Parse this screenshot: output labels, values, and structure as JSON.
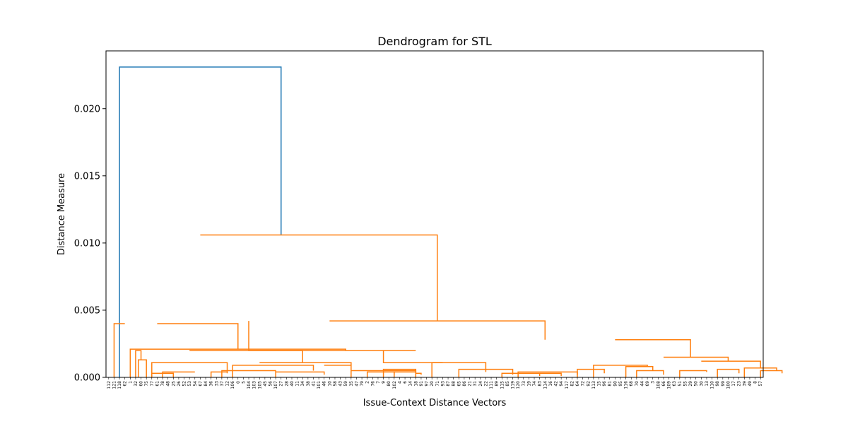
{
  "chart_data": {
    "type": "dendrogram",
    "title": "Dendrogram for STL",
    "xlabel": "Issue-Context Distance Vectors",
    "ylabel": "Distance Measure",
    "ylim": [
      0,
      0.0243
    ],
    "yticks": [
      0.0,
      0.005,
      0.01,
      0.015,
      0.02
    ],
    "ytick_labels": [
      "0.000",
      "0.005",
      "0.010",
      "0.015",
      "0.020"
    ],
    "grid": false,
    "colors": {
      "above_threshold": "#1f77b4",
      "cluster": "#ff7f0e"
    },
    "leaves": [
      "112",
      "121",
      "118",
      "62",
      "1",
      "32",
      "60",
      "75",
      "77",
      "61",
      "78",
      "48",
      "25",
      "26",
      "52",
      "53",
      "54",
      "67",
      "84",
      "36",
      "33",
      "37",
      "12",
      "106",
      "0",
      "5",
      "104",
      "103",
      "105",
      "45",
      "56",
      "107",
      "27",
      "28",
      "40",
      "11",
      "34",
      "38",
      "41",
      "101",
      "46",
      "10",
      "58",
      "43",
      "59",
      "35",
      "47",
      "79",
      "2",
      "76",
      "7",
      "9",
      "80",
      "102",
      "4",
      "6",
      "14",
      "18",
      "91",
      "97",
      "20",
      "71",
      "93",
      "87",
      "88",
      "65",
      "86",
      "21",
      "31",
      "24",
      "22",
      "111",
      "89",
      "115",
      "85",
      "119",
      "120",
      "73",
      "19",
      "74",
      "83",
      "114",
      "16",
      "42",
      "94",
      "117",
      "82",
      "64",
      "72",
      "92",
      "113",
      "15",
      "96",
      "81",
      "90",
      "95",
      "116",
      "68",
      "70",
      "44",
      "69",
      "3",
      "108",
      "66",
      "109",
      "63",
      "51",
      "55",
      "29",
      "50",
      "30",
      "13",
      "110",
      "98",
      "99",
      "100",
      "17",
      "23",
      "39",
      "49",
      "8",
      "57"
    ],
    "links": [
      {
        "x": [
          2,
          2,
          32,
          32
        ],
        "y": [
          0,
          0.0231,
          0.0231,
          0.0106
        ]
      },
      {
        "x": [
          17,
          17,
          61,
          61
        ],
        "y": [
          0.0106,
          0.0106,
          0.0106,
          0.0042
        ]
      },
      {
        "x": [
          9,
          9,
          24,
          24
        ],
        "y": [
          0.004,
          0.004,
          0.004,
          0.0021
        ]
      },
      {
        "x": [
          1,
          1,
          3,
          3
        ],
        "y": [
          0,
          0.004,
          0.004,
          0.004
        ]
      },
      {
        "x": [
          4,
          4,
          44,
          44
        ],
        "y": [
          0,
          0.0021,
          0.0021,
          0.002
        ]
      },
      {
        "x": [
          5,
          5,
          6,
          6
        ],
        "y": [
          0,
          0.002,
          0.002,
          0.0013
        ]
      },
      {
        "x": [
          5.5,
          5.5,
          7,
          7
        ],
        "y": [
          0,
          0.0013,
          0.0013,
          0
        ]
      },
      {
        "x": [
          41,
          41,
          81,
          81
        ],
        "y": [
          0.0042,
          0.0042,
          0.0042,
          0.0028
        ]
      },
      {
        "x": [
          26,
          26,
          57,
          57
        ],
        "y": [
          0.0042,
          0.002,
          0.002,
          0.002
        ]
      },
      {
        "x": [
          15,
          15,
          36,
          36
        ],
        "y": [
          0.002,
          0.002,
          0.002,
          0.0011
        ]
      },
      {
        "x": [
          28,
          28,
          45,
          45
        ],
        "y": [
          0.0011,
          0.0011,
          0.0011,
          0.0009
        ]
      },
      {
        "x": [
          8,
          8,
          22,
          22
        ],
        "y": [
          0,
          0.0011,
          0.0011,
          0.0004
        ]
      },
      {
        "x": [
          8,
          8,
          12,
          12
        ],
        "y": [
          0,
          0.0003,
          0.0003,
          0
        ]
      },
      {
        "x": [
          10,
          10,
          16,
          16
        ],
        "y": [
          0,
          0.0004,
          0.0004,
          0.0004
        ]
      },
      {
        "x": [
          19,
          19,
          22,
          22
        ],
        "y": [
          0,
          0.0004,
          0.0004,
          0.0003
        ]
      },
      {
        "x": [
          23,
          23,
          38,
          38
        ],
        "y": [
          0,
          0.0009,
          0.0009,
          0.0005
        ]
      },
      {
        "x": [
          21,
          21,
          31,
          31
        ],
        "y": [
          0,
          0.0005,
          0.0005,
          0.0004
        ]
      },
      {
        "x": [
          31,
          31,
          40,
          40
        ],
        "y": [
          0,
          0.0004,
          0.0004,
          0.0002
        ]
      },
      {
        "x": [
          40,
          40,
          45,
          45
        ],
        "y": [
          0.0009,
          0.0009,
          0.0009,
          0.0005
        ]
      },
      {
        "x": [
          45,
          45,
          57,
          57
        ],
        "y": [
          0,
          0.0005,
          0.0005,
          0.0004
        ]
      },
      {
        "x": [
          48,
          48,
          53,
          53
        ],
        "y": [
          0,
          0.0004,
          0.0004,
          0.0002
        ]
      },
      {
        "x": [
          53,
          53,
          57,
          57
        ],
        "y": [
          0,
          0.0004,
          0.0004,
          0.0003
        ]
      },
      {
        "x": [
          57,
          57,
          58,
          58
        ],
        "y": [
          0,
          0.0003,
          0.0003,
          0.0002
        ]
      },
      {
        "x": [
          51,
          51,
          62,
          62
        ],
        "y": [
          0.002,
          0.0011,
          0.0011,
          0.0011
        ]
      },
      {
        "x": [
          51,
          51,
          57,
          57
        ],
        "y": [
          0,
          0.0006,
          0.0006,
          0.0002
        ]
      },
      {
        "x": [
          60,
          60,
          70,
          70
        ],
        "y": [
          0,
          0.0011,
          0.0011,
          0.0004
        ]
      },
      {
        "x": [
          65,
          65,
          75,
          75
        ],
        "y": [
          0,
          0.0006,
          0.0006,
          0.0002
        ]
      },
      {
        "x": [
          73,
          73,
          80,
          80
        ],
        "y": [
          0,
          0.0003,
          0.0003,
          0.0001
        ]
      },
      {
        "x": [
          76,
          76,
          87,
          87
        ],
        "y": [
          0,
          0.0004,
          0.0004,
          0.0002
        ]
      },
      {
        "x": [
          73,
          73,
          84,
          84
        ],
        "y": [
          0,
          0.0003,
          0.0003,
          0.0001
        ]
      },
      {
        "x": [
          94,
          94,
          108,
          108
        ],
        "y": [
          0.0028,
          0.0028,
          0.0028,
          0.0015
        ]
      },
      {
        "x": [
          90,
          90,
          100,
          100
        ],
        "y": [
          0,
          0.0009,
          0.0009,
          0.0008
        ]
      },
      {
        "x": [
          87,
          87,
          92,
          92
        ],
        "y": [
          0,
          0.0006,
          0.0006,
          0.0003
        ]
      },
      {
        "x": [
          96,
          96,
          101,
          101
        ],
        "y": [
          0,
          0.0008,
          0.0008,
          0.0005
        ]
      },
      {
        "x": [
          98,
          98,
          103,
          103
        ],
        "y": [
          0,
          0.0005,
          0.0005,
          0.0002
        ]
      },
      {
        "x": [
          103,
          103,
          115,
          115
        ],
        "y": [
          0.0015,
          0.0015,
          0.0015,
          0.0012
        ]
      },
      {
        "x": [
          106,
          106,
          111,
          111
        ],
        "y": [
          0,
          0.0005,
          0.0005,
          0.0004
        ]
      },
      {
        "x": [
          110,
          110,
          121,
          121
        ],
        "y": [
          0.0012,
          0.0012,
          0.0012,
          0.0007
        ]
      },
      {
        "x": [
          113,
          113,
          117,
          117
        ],
        "y": [
          0,
          0.0006,
          0.0006,
          0.0003
        ]
      },
      {
        "x": [
          118,
          118,
          124,
          124
        ],
        "y": [
          0,
          0.0007,
          0.0007,
          0.0005
        ]
      },
      {
        "x": [
          121,
          121,
          125,
          125
        ],
        "y": [
          0,
          0.0005,
          0.0005,
          0.0003
        ]
      }
    ]
  }
}
